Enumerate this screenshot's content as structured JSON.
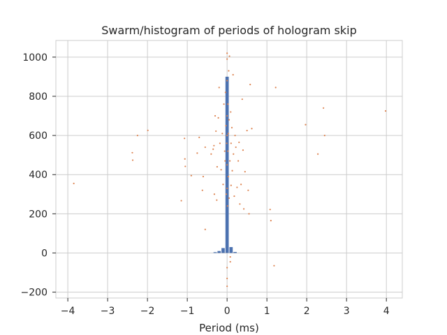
{
  "chart_data": {
    "type": "scatter",
    "title": "Swarm/histogram of periods of hologram skip",
    "xlabel": "Period (ms)",
    "ylabel": "",
    "xlim": [
      -4.3,
      4.4
    ],
    "ylim": [
      -230,
      1085
    ],
    "xticks": [
      -4,
      -3,
      -2,
      -1,
      0,
      1,
      2,
      3,
      4
    ],
    "yticks": [
      -200,
      0,
      200,
      400,
      600,
      800,
      1000
    ],
    "xtick_labels": [
      "−4",
      "−3",
      "−2",
      "−1",
      "0",
      "1",
      "2",
      "3",
      "4"
    ],
    "ytick_labels": [
      "−200",
      "0",
      "200",
      "400",
      "600",
      "800",
      "1000"
    ],
    "grid": true,
    "colors": {
      "bar": "#4c72b0",
      "scatter": "#dd8452",
      "grid": "#cccccc",
      "frame": "#cccccc",
      "text": "#262626"
    },
    "histogram": {
      "bin_width": 0.1,
      "bins": [
        {
          "x": -0.3,
          "count": 4
        },
        {
          "x": -0.2,
          "count": 10
        },
        {
          "x": -0.1,
          "count": 25
        },
        {
          "x": 0.0,
          "count": 900
        },
        {
          "x": 0.1,
          "count": 30
        },
        {
          "x": 0.2,
          "count": 5
        }
      ]
    },
    "scatter_points": [
      [
        -3.85,
        355
      ],
      [
        -2.38,
        512
      ],
      [
        -2.37,
        474
      ],
      [
        -2.25,
        600
      ],
      [
        -1.99,
        626
      ],
      [
        -1.15,
        267
      ],
      [
        -1.07,
        585
      ],
      [
        -1.06,
        480
      ],
      [
        -1.05,
        442
      ],
      [
        -0.9,
        395
      ],
      [
        -0.75,
        510
      ],
      [
        -0.7,
        590
      ],
      [
        -0.62,
        320
      ],
      [
        -0.6,
        390
      ],
      [
        -0.55,
        540
      ],
      [
        -0.55,
        120
      ],
      [
        -0.4,
        505
      ],
      [
        -0.35,
        530
      ],
      [
        -0.33,
        548
      ],
      [
        -0.32,
        300
      ],
      [
        -0.3,
        700
      ],
      [
        -0.28,
        622
      ],
      [
        -0.26,
        270
      ],
      [
        -0.25,
        440
      ],
      [
        -0.22,
        690
      ],
      [
        -0.2,
        845
      ],
      [
        -0.18,
        560
      ],
      [
        -0.15,
        425
      ],
      [
        -0.12,
        610
      ],
      [
        -0.1,
        350
      ],
      [
        -0.08,
        760
      ],
      [
        -0.06,
        520
      ],
      [
        -0.05,
        470
      ],
      [
        -0.04,
        820
      ],
      [
        -0.03,
        650
      ],
      [
        -0.02,
        300
      ],
      [
        -0.01,
        560
      ],
      [
        0.0,
        1020
      ],
      [
        0.0,
        990
      ],
      [
        0.0,
        880
      ],
      [
        0.0,
        700
      ],
      [
        0.0,
        600
      ],
      [
        0.0,
        450
      ],
      [
        0.0,
        330
      ],
      [
        0.0,
        -75
      ],
      [
        0.0,
        -130
      ],
      [
        0.0,
        -170
      ],
      [
        0.01,
        240
      ],
      [
        0.02,
        520
      ],
      [
        0.02,
        760
      ],
      [
        0.03,
        390
      ],
      [
        0.03,
        610
      ],
      [
        0.04,
        930
      ],
      [
        0.05,
        280
      ],
      [
        0.05,
        680
      ],
      [
        0.06,
        1005
      ],
      [
        0.07,
        470
      ],
      [
        0.08,
        -20
      ],
      [
        0.08,
        -45
      ],
      [
        0.09,
        720
      ],
      [
        0.1,
        560
      ],
      [
        0.1,
        345
      ],
      [
        0.12,
        640
      ],
      [
        0.13,
        420
      ],
      [
        0.15,
        910
      ],
      [
        0.16,
        505
      ],
      [
        0.18,
        290
      ],
      [
        0.2,
        600
      ],
      [
        0.22,
        540
      ],
      [
        0.25,
        335
      ],
      [
        0.28,
        470
      ],
      [
        0.3,
        565
      ],
      [
        0.32,
        250
      ],
      [
        0.35,
        350
      ],
      [
        0.38,
        785
      ],
      [
        0.4,
        525
      ],
      [
        0.42,
        225
      ],
      [
        0.45,
        415
      ],
      [
        0.5,
        625
      ],
      [
        0.53,
        320
      ],
      [
        0.55,
        200
      ],
      [
        0.58,
        860
      ],
      [
        0.62,
        635
      ],
      [
        1.08,
        222
      ],
      [
        1.1,
        165
      ],
      [
        1.18,
        -65
      ],
      [
        1.22,
        845
      ],
      [
        1.97,
        655
      ],
      [
        2.28,
        505
      ],
      [
        2.42,
        740
      ],
      [
        2.45,
        600
      ],
      [
        3.98,
        725
      ]
    ]
  }
}
